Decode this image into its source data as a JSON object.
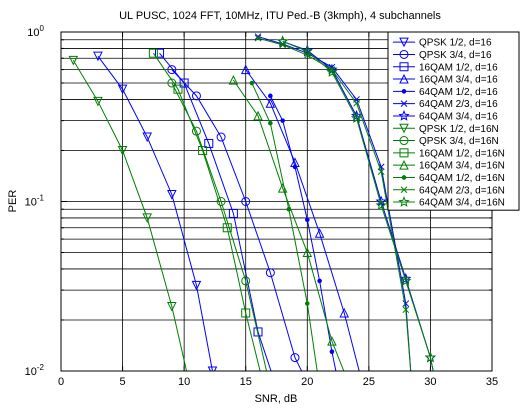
{
  "chart_data": {
    "type": "line",
    "title": "UL PUSC, 1024 FFT, 10MHz, ITU Ped.-B (3kmph), 4 subchannels",
    "xlabel": "SNR, dB",
    "ylabel": "PER",
    "xlim": [
      0,
      35
    ],
    "ylim": [
      0.01,
      1
    ],
    "yscale": "log",
    "grid": true,
    "legend_position": "top-right",
    "x_ticks": [
      {
        "value": 0,
        "label": "0"
      },
      {
        "value": 5,
        "label": "5"
      },
      {
        "value": 10,
        "label": "10"
      },
      {
        "value": 15,
        "label": "15"
      },
      {
        "value": 20,
        "label": "20"
      },
      {
        "value": 25,
        "label": "25"
      },
      {
        "value": 30,
        "label": "30"
      },
      {
        "value": 35,
        "label": "35"
      }
    ],
    "y_ticks": [
      {
        "value": 1,
        "mantissa": "10",
        "exponent": "0"
      },
      {
        "value": 0.1,
        "mantissa": "10",
        "exponent": "-1"
      },
      {
        "value": 0.01,
        "mantissa": "10",
        "exponent": "-2"
      }
    ],
    "series": [
      {
        "name": "QPSK 1/2, d=16",
        "color": "#0000ff",
        "marker": "triangle-down",
        "x": [
          3,
          5,
          7,
          9,
          11,
          12.3
        ],
        "y": [
          0.72,
          0.46,
          0.24,
          0.11,
          0.032,
          0.01
        ]
      },
      {
        "name": "QPSK 3/4, d=16",
        "color": "#0000ff",
        "marker": "circle",
        "x": [
          9,
          11,
          13,
          15,
          17,
          19,
          20.2
        ],
        "y": [
          0.6,
          0.42,
          0.24,
          0.1,
          0.038,
          0.012,
          0.008
        ]
      },
      {
        "name": "16QAM 1/2, d=16",
        "color": "#0000ff",
        "marker": "square",
        "x": [
          8,
          10,
          12,
          14,
          16,
          17.5
        ],
        "y": [
          0.75,
          0.5,
          0.22,
          0.085,
          0.017,
          0.008
        ]
      },
      {
        "name": "16QAM 3/4, d=16",
        "color": "#0000ff",
        "marker": "triangle-up",
        "x": [
          15,
          17,
          19,
          21,
          23,
          25
        ],
        "y": [
          0.6,
          0.38,
          0.17,
          0.065,
          0.022,
          0.006
        ]
      },
      {
        "name": "64QAM 1/2, d=16",
        "color": "#0000ff",
        "marker": "point",
        "x": [
          17,
          18,
          19,
          20,
          21,
          22,
          22.6
        ],
        "y": [
          0.42,
          0.3,
          0.16,
          0.078,
          0.034,
          0.013,
          0.008
        ]
      },
      {
        "name": "64QAM 2/3, d=16",
        "color": "#0000ff",
        "marker": "x",
        "x": [
          16,
          18,
          20,
          22,
          24,
          26,
          28,
          28.5
        ],
        "y": [
          0.94,
          0.85,
          0.75,
          0.62,
          0.4,
          0.16,
          0.025,
          0.008
        ]
      },
      {
        "name": "64QAM 3/4, d=16",
        "color": "#0000ff",
        "marker": "star",
        "x": [
          18,
          20,
          22,
          24,
          26,
          28,
          30,
          30.5
        ],
        "y": [
          0.88,
          0.78,
          0.6,
          0.32,
          0.1,
          0.035,
          0.012,
          0.008
        ]
      },
      {
        "name": "QPSK 1/2, d=16N",
        "color": "#008000",
        "marker": "triangle-down",
        "x": [
          1,
          3,
          5,
          7,
          9,
          10.5
        ],
        "y": [
          0.68,
          0.39,
          0.2,
          0.08,
          0.024,
          0.008
        ]
      },
      {
        "name": "QPSK 3/4, d=16N",
        "color": "#008000",
        "marker": "circle",
        "x": [
          9,
          11,
          13,
          15,
          17
        ],
        "y": [
          0.5,
          0.26,
          0.1,
          0.034,
          0.008
        ]
      },
      {
        "name": "16QAM 1/2, d=16N",
        "color": "#008000",
        "marker": "square",
        "x": [
          7.5,
          9.5,
          11.5,
          13.5,
          15,
          16.5
        ],
        "y": [
          0.75,
          0.46,
          0.2,
          0.07,
          0.022,
          0.008
        ]
      },
      {
        "name": "16QAM 3/4, d=16N",
        "color": "#008000",
        "marker": "triangle-up",
        "x": [
          14,
          16,
          18,
          20,
          22,
          23.5
        ],
        "y": [
          0.52,
          0.32,
          0.12,
          0.05,
          0.015,
          0.008
        ]
      },
      {
        "name": "64QAM 1/2, d=16N",
        "color": "#008000",
        "marker": "point",
        "x": [
          15.5,
          17,
          18.5,
          20,
          21
        ],
        "y": [
          0.5,
          0.29,
          0.09,
          0.025,
          0.008
        ]
      },
      {
        "name": "64QAM 2/3, d=16N",
        "color": "#008000",
        "marker": "x",
        "x": [
          16,
          18,
          20,
          22,
          24,
          26,
          28,
          28.5
        ],
        "y": [
          0.92,
          0.84,
          0.73,
          0.6,
          0.38,
          0.15,
          0.023,
          0.008
        ]
      },
      {
        "name": "64QAM 3/4, d=16N",
        "color": "#008000",
        "marker": "star",
        "x": [
          18,
          20,
          22,
          24,
          26,
          28,
          30,
          30.5
        ],
        "y": [
          0.88,
          0.77,
          0.58,
          0.31,
          0.095,
          0.034,
          0.012,
          0.008
        ]
      }
    ]
  }
}
